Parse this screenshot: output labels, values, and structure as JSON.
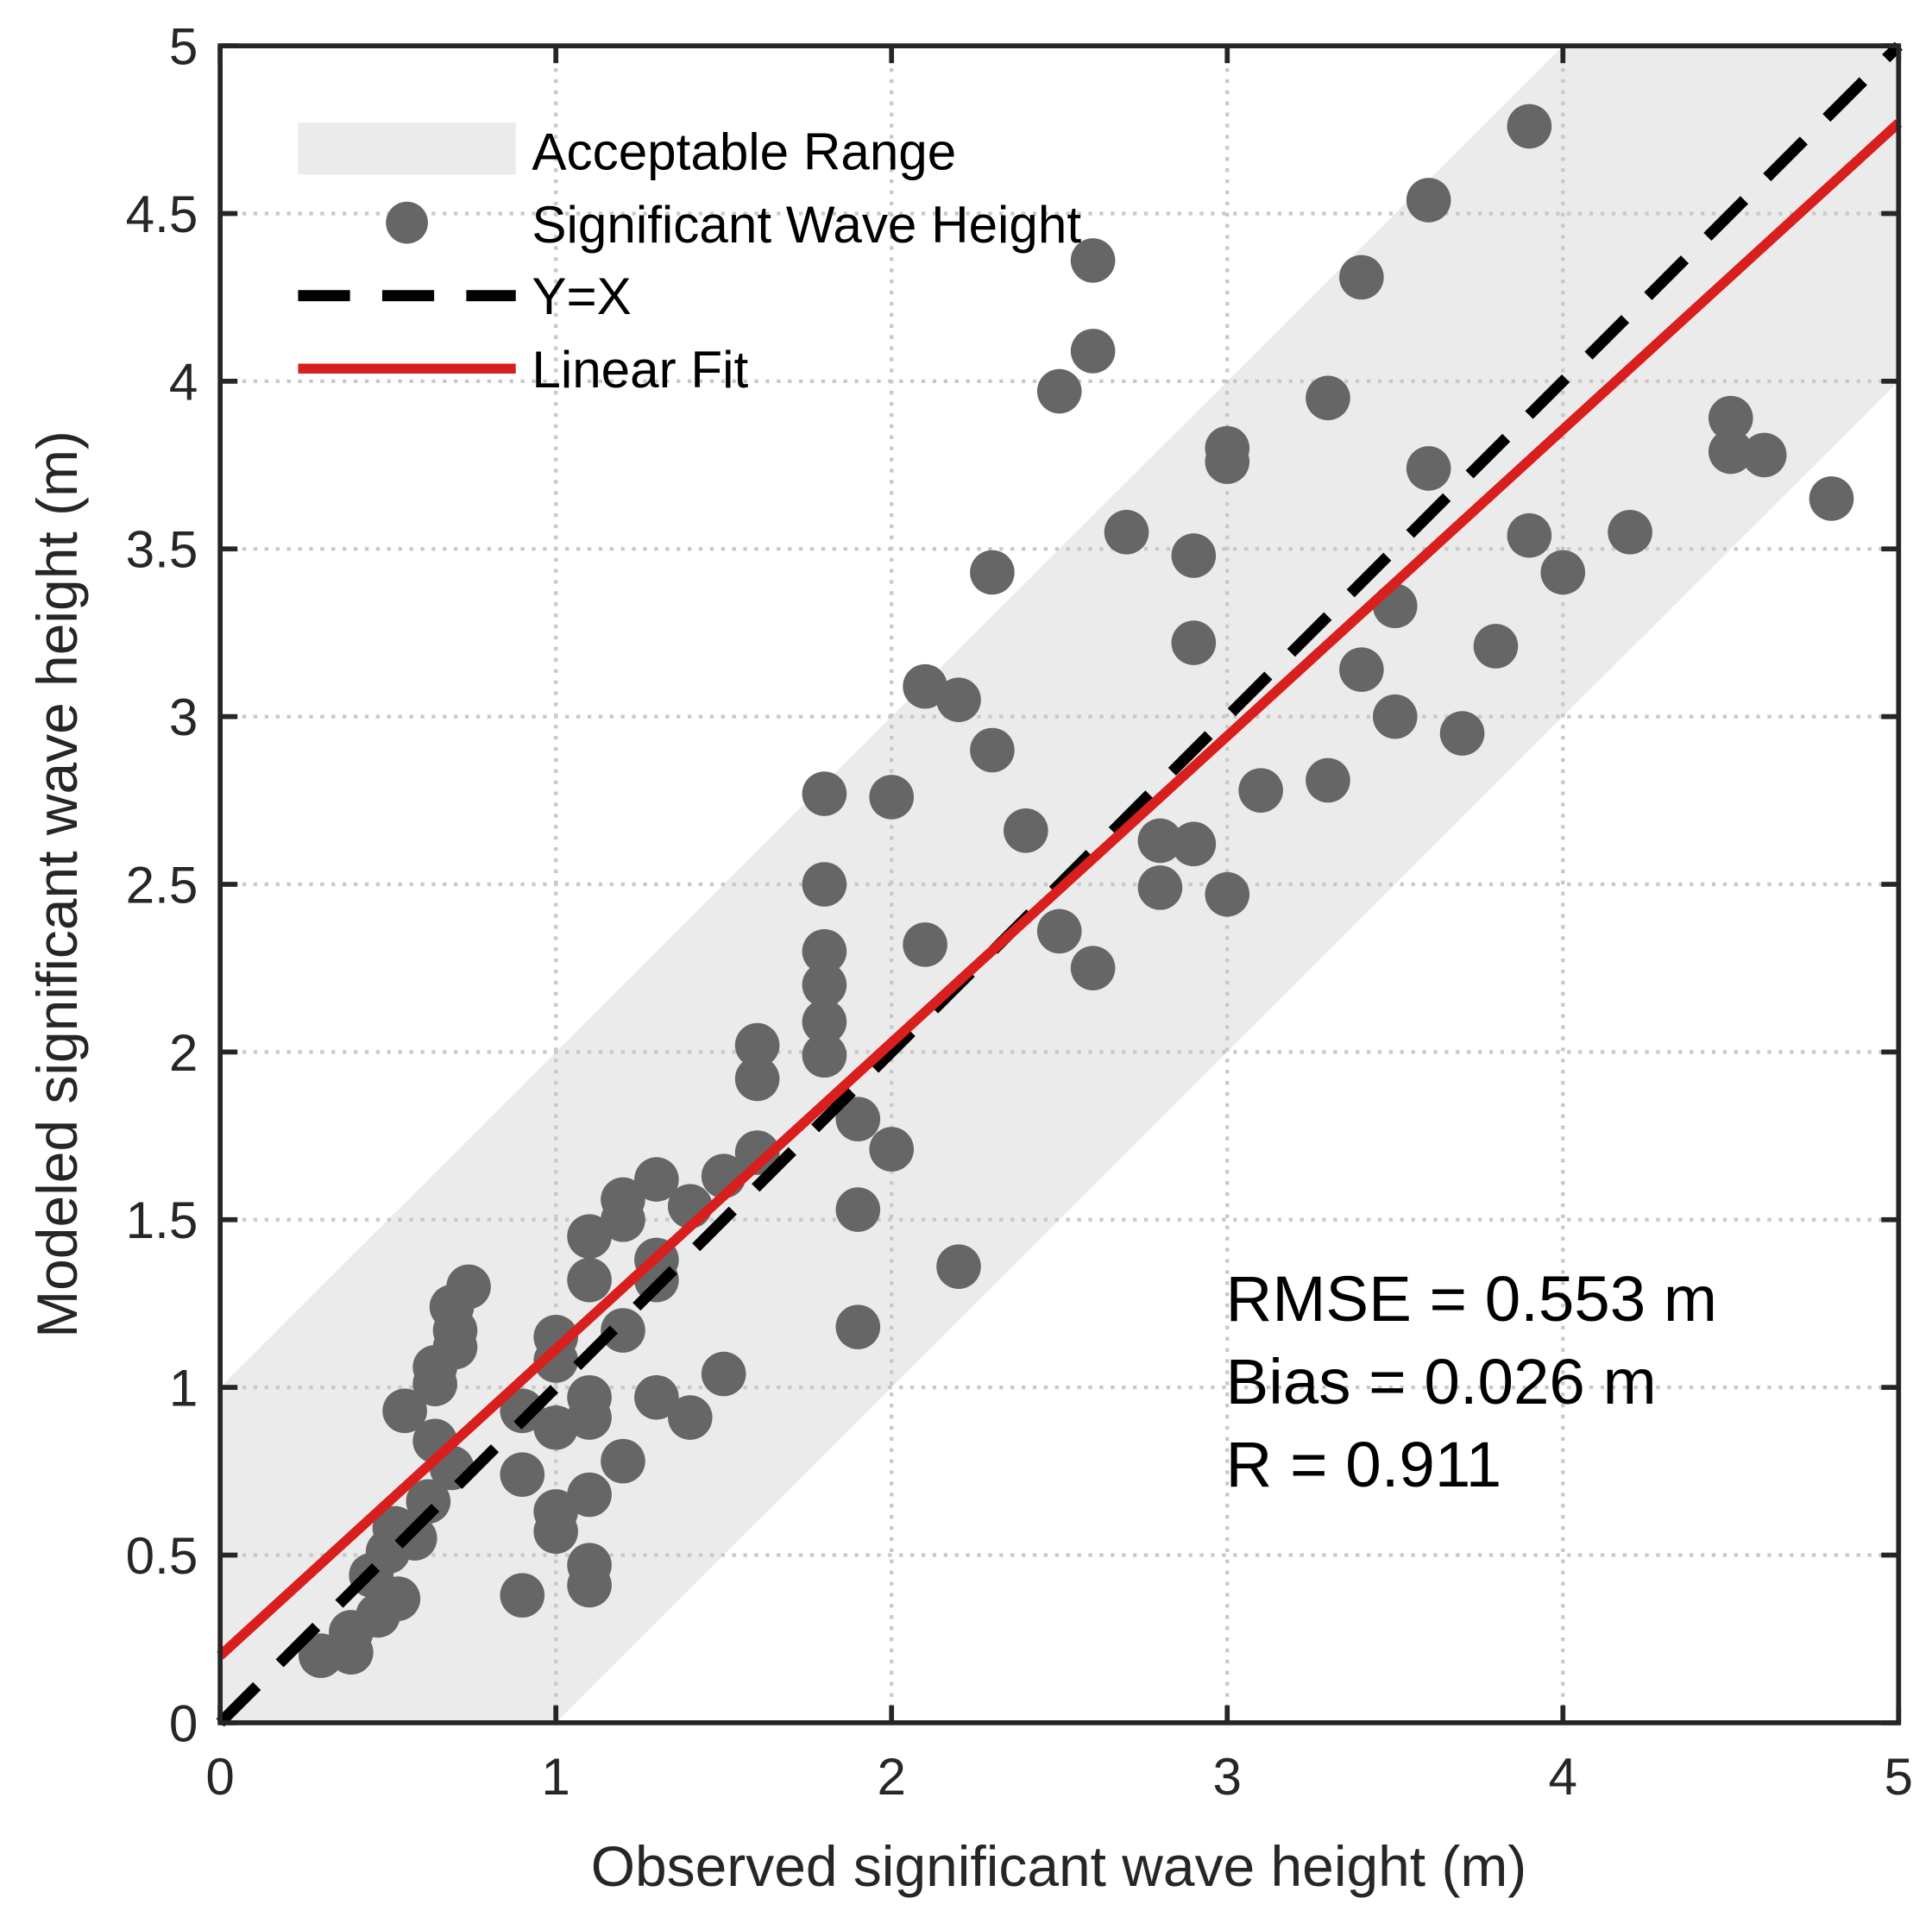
{
  "chart_data": {
    "type": "scatter",
    "title": "",
    "xlabel": "Observed significant wave height (m)",
    "ylabel": "Modeled significant wave height (m)",
    "xlim": [
      0,
      5
    ],
    "ylim": [
      0,
      5
    ],
    "grid": true,
    "xticks": [
      "0",
      "1",
      "2",
      "3",
      "4",
      "5"
    ],
    "yticks": [
      "0",
      "0.5",
      "1",
      "1.5",
      "2",
      "2.5",
      "3",
      "3.5",
      "4",
      "4.5",
      "5"
    ],
    "legend": {
      "placement": "top-left",
      "entries": [
        "Acceptable Range",
        "Significant Wave Height",
        "Y=X",
        "Linear Fit"
      ]
    },
    "acceptable_range_halfwidth": 1,
    "linear_fit": {
      "slope": 0.914,
      "intercept": 0.2
    },
    "annotations": [
      "RMSE = 0.553 m",
      "Bias = 0.026 m",
      "R = 0.911"
    ],
    "colors": {
      "points": "#666666",
      "fit": "#d91e1e",
      "identity": "#000000",
      "band": "#ebebeb"
    },
    "points": [
      [
        3.9,
        4.76
      ],
      [
        3.6,
        4.54
      ],
      [
        3.4,
        4.31
      ],
      [
        2.6,
        4.36
      ],
      [
        2.6,
        4.09
      ],
      [
        2.5,
        3.97
      ],
      [
        3.3,
        3.95
      ],
      [
        3.0,
        3.8
      ],
      [
        3.0,
        3.76
      ],
      [
        3.6,
        3.74
      ],
      [
        4.5,
        3.89
      ],
      [
        4.5,
        3.79
      ],
      [
        4.6,
        3.78
      ],
      [
        4.8,
        3.65
      ],
      [
        2.7,
        3.55
      ],
      [
        2.9,
        3.48
      ],
      [
        3.9,
        3.54
      ],
      [
        4.2,
        3.55
      ],
      [
        4.0,
        3.43
      ],
      [
        2.3,
        3.43
      ],
      [
        3.5,
        3.33
      ],
      [
        2.9,
        3.22
      ],
      [
        3.8,
        3.21
      ],
      [
        3.4,
        3.14
      ],
      [
        2.1,
        3.09
      ],
      [
        2.2,
        3.05
      ],
      [
        3.5,
        3.0
      ],
      [
        3.7,
        2.95
      ],
      [
        2.3,
        2.9
      ],
      [
        1.8,
        2.77
      ],
      [
        2.0,
        2.76
      ],
      [
        3.1,
        2.78
      ],
      [
        3.3,
        2.81
      ],
      [
        2.4,
        2.66
      ],
      [
        2.8,
        2.63
      ],
      [
        2.9,
        2.62
      ],
      [
        1.8,
        2.5
      ],
      [
        2.8,
        2.49
      ],
      [
        3.0,
        2.47
      ],
      [
        2.5,
        2.36
      ],
      [
        2.1,
        2.32
      ],
      [
        1.8,
        2.3
      ],
      [
        2.6,
        2.25
      ],
      [
        1.8,
        2.2
      ],
      [
        1.8,
        2.09
      ],
      [
        1.8,
        1.99
      ],
      [
        1.6,
        2.02
      ],
      [
        1.6,
        1.92
      ],
      [
        1.9,
        1.8
      ],
      [
        2.0,
        1.71
      ],
      [
        1.6,
        1.7
      ],
      [
        1.5,
        1.63
      ],
      [
        1.3,
        1.62
      ],
      [
        1.4,
        1.54
      ],
      [
        1.9,
        1.53
      ],
      [
        1.2,
        1.56
      ],
      [
        1.2,
        1.5
      ],
      [
        1.1,
        1.45
      ],
      [
        1.3,
        1.38
      ],
      [
        1.3,
        1.32
      ],
      [
        1.1,
        1.32
      ],
      [
        2.2,
        1.36
      ],
      [
        1.2,
        1.17
      ],
      [
        1.9,
        1.18
      ],
      [
        1.0,
        1.15
      ],
      [
        1.0,
        1.08
      ],
      [
        1.5,
        1.04
      ],
      [
        1.3,
        0.97
      ],
      [
        1.4,
        0.91
      ],
      [
        1.1,
        0.97
      ],
      [
        1.1,
        0.91
      ],
      [
        0.9,
        0.93
      ],
      [
        1.0,
        0.88
      ],
      [
        1.2,
        0.78
      ],
      [
        0.9,
        0.74
      ],
      [
        1.1,
        0.68
      ],
      [
        1.0,
        0.63
      ],
      [
        1.0,
        0.57
      ],
      [
        1.1,
        0.47
      ],
      [
        1.1,
        0.41
      ],
      [
        0.9,
        0.38
      ],
      [
        0.74,
        1.3
      ],
      [
        0.69,
        1.24
      ],
      [
        0.7,
        1.17
      ],
      [
        0.7,
        1.12
      ],
      [
        0.64,
        1.06
      ],
      [
        0.64,
        1.01
      ],
      [
        0.55,
        0.93
      ],
      [
        0.64,
        0.84
      ],
      [
        0.69,
        0.76
      ],
      [
        0.62,
        0.66
      ],
      [
        0.52,
        0.58
      ],
      [
        0.5,
        0.51
      ],
      [
        0.45,
        0.44
      ],
      [
        0.53,
        0.37
      ],
      [
        0.47,
        0.32
      ],
      [
        0.39,
        0.27
      ],
      [
        0.3,
        0.2
      ],
      [
        0.39,
        0.21
      ],
      [
        0.58,
        0.55
      ]
    ]
  }
}
